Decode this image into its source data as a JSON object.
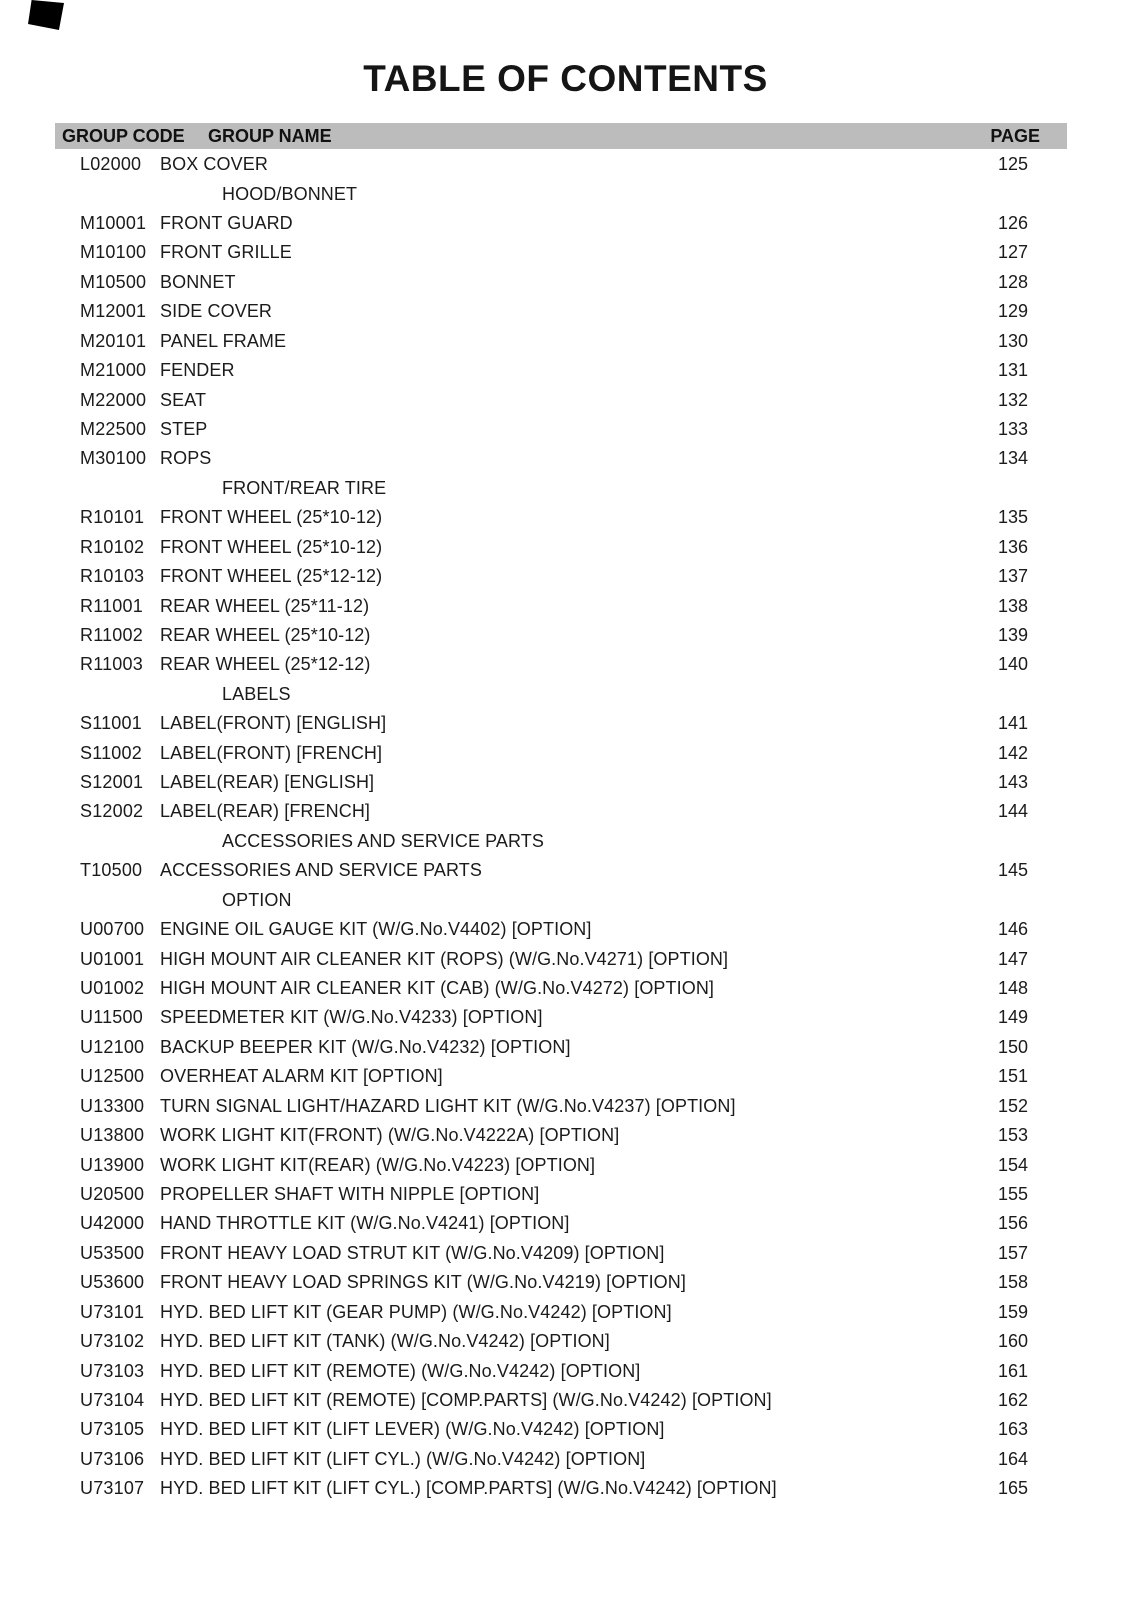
{
  "title": "TABLE OF CONTENTS",
  "header": {
    "col_code": "GROUP CODE",
    "col_name": "GROUP NAME",
    "col_page": "PAGE"
  },
  "colors": {
    "header_bar": "#bcbcbc",
    "text": "#1b1b1b"
  },
  "rows": [
    {
      "type": "entry",
      "code": "L02000",
      "name": "BOX COVER",
      "page": "125"
    },
    {
      "type": "section",
      "name": "HOOD/BONNET"
    },
    {
      "type": "entry",
      "code": "M10001",
      "name": "FRONT GUARD",
      "page": "126"
    },
    {
      "type": "entry",
      "code": "M10100",
      "name": "FRONT GRILLE",
      "page": "127"
    },
    {
      "type": "entry",
      "code": "M10500",
      "name": "BONNET",
      "page": "128"
    },
    {
      "type": "entry",
      "code": "M12001",
      "name": "SIDE COVER",
      "page": "129"
    },
    {
      "type": "entry",
      "code": "M20101",
      "name": "PANEL FRAME",
      "page": "130"
    },
    {
      "type": "entry",
      "code": "M21000",
      "name": "FENDER",
      "page": "131"
    },
    {
      "type": "entry",
      "code": "M22000",
      "name": "SEAT",
      "page": "132"
    },
    {
      "type": "entry",
      "code": "M22500",
      "name": "STEP",
      "page": "133"
    },
    {
      "type": "entry",
      "code": "M30100",
      "name": "ROPS",
      "page": "134"
    },
    {
      "type": "section",
      "name": "FRONT/REAR TIRE"
    },
    {
      "type": "entry",
      "code": "R10101",
      "name": "FRONT WHEEL (25*10-12)",
      "page": "135"
    },
    {
      "type": "entry",
      "code": "R10102",
      "name": "FRONT WHEEL (25*10-12)",
      "page": "136"
    },
    {
      "type": "entry",
      "code": "R10103",
      "name": "FRONT WHEEL (25*12-12)",
      "page": "137"
    },
    {
      "type": "entry",
      "code": "R11001",
      "name": "REAR WHEEL (25*11-12)",
      "page": "138"
    },
    {
      "type": "entry",
      "code": "R11002",
      "name": "REAR WHEEL (25*10-12)",
      "page": "139"
    },
    {
      "type": "entry",
      "code": "R11003",
      "name": "REAR WHEEL (25*12-12)",
      "page": "140"
    },
    {
      "type": "section",
      "name": "LABELS"
    },
    {
      "type": "entry",
      "code": "S11001",
      "name": "LABEL(FRONT) [ENGLISH]",
      "page": "141"
    },
    {
      "type": "entry",
      "code": "S11002",
      "name": "LABEL(FRONT) [FRENCH]",
      "page": "142"
    },
    {
      "type": "entry",
      "code": "S12001",
      "name": "LABEL(REAR) [ENGLISH]",
      "page": "143"
    },
    {
      "type": "entry",
      "code": "S12002",
      "name": "LABEL(REAR) [FRENCH]",
      "page": "144"
    },
    {
      "type": "section",
      "name": "ACCESSORIES AND SERVICE PARTS"
    },
    {
      "type": "entry",
      "code": "T10500",
      "name": "ACCESSORIES AND SERVICE PARTS",
      "page": "145"
    },
    {
      "type": "section",
      "name": "OPTION"
    },
    {
      "type": "entry",
      "code": "U00700",
      "name": "ENGINE OIL GAUGE KIT (W/G.No.V4402) [OPTION]",
      "page": "146"
    },
    {
      "type": "entry",
      "code": "U01001",
      "name": "HIGH MOUNT AIR CLEANER KIT (ROPS) (W/G.No.V4271) [OPTION]",
      "page": "147"
    },
    {
      "type": "entry",
      "code": "U01002",
      "name": "HIGH MOUNT AIR CLEANER KIT (CAB) (W/G.No.V4272) [OPTION]",
      "page": "148"
    },
    {
      "type": "entry",
      "code": "U11500",
      "name": "SPEEDMETER KIT (W/G.No.V4233) [OPTION]",
      "page": "149"
    },
    {
      "type": "entry",
      "code": "U12100",
      "name": "BACKUP BEEPER KIT (W/G.No.V4232) [OPTION]",
      "page": "150"
    },
    {
      "type": "entry",
      "code": "U12500",
      "name": "OVERHEAT ALARM KIT [OPTION]",
      "page": "151"
    },
    {
      "type": "entry",
      "code": "U13300",
      "name": "TURN SIGNAL LIGHT/HAZARD LIGHT KIT (W/G.No.V4237) [OPTION]",
      "page": "152"
    },
    {
      "type": "entry",
      "code": "U13800",
      "name": "WORK LIGHT KIT(FRONT) (W/G.No.V4222A) [OPTION]",
      "page": "153"
    },
    {
      "type": "entry",
      "code": "U13900",
      "name": "WORK LIGHT KIT(REAR) (W/G.No.V4223) [OPTION]",
      "page": "154"
    },
    {
      "type": "entry",
      "code": "U20500",
      "name": "PROPELLER SHAFT WITH NIPPLE [OPTION]",
      "page": "155"
    },
    {
      "type": "entry",
      "code": "U42000",
      "name": "HAND THROTTLE KIT (W/G.No.V4241) [OPTION]",
      "page": "156"
    },
    {
      "type": "entry",
      "code": "U53500",
      "name": "FRONT HEAVY LOAD STRUT KIT (W/G.No.V4209) [OPTION]",
      "page": "157"
    },
    {
      "type": "entry",
      "code": "U53600",
      "name": "FRONT HEAVY LOAD SPRINGS KIT (W/G.No.V4219) [OPTION]",
      "page": "158"
    },
    {
      "type": "entry",
      "code": "U73101",
      "name": "HYD. BED LIFT KIT (GEAR PUMP) (W/G.No.V4242) [OPTION]",
      "page": "159"
    },
    {
      "type": "entry",
      "code": "U73102",
      "name": "HYD. BED LIFT KIT (TANK) (W/G.No.V4242) [OPTION]",
      "page": "160"
    },
    {
      "type": "entry",
      "code": "U73103",
      "name": "HYD. BED LIFT KIT (REMOTE) (W/G.No.V4242) [OPTION]",
      "page": "161"
    },
    {
      "type": "entry",
      "code": "U73104",
      "name": "HYD. BED LIFT KIT (REMOTE) [COMP.PARTS] (W/G.No.V4242) [OPTION]",
      "page": "162"
    },
    {
      "type": "entry",
      "code": "U73105",
      "name": "HYD. BED LIFT KIT (LIFT LEVER) (W/G.No.V4242) [OPTION]",
      "page": "163"
    },
    {
      "type": "entry",
      "code": "U73106",
      "name": "HYD. BED LIFT KIT (LIFT CYL.) (W/G.No.V4242) [OPTION]",
      "page": "164"
    },
    {
      "type": "entry",
      "code": "U73107",
      "name": "HYD. BED LIFT KIT (LIFT CYL.) [COMP.PARTS] (W/G.No.V4242) [OPTION]",
      "page": "165"
    }
  ]
}
